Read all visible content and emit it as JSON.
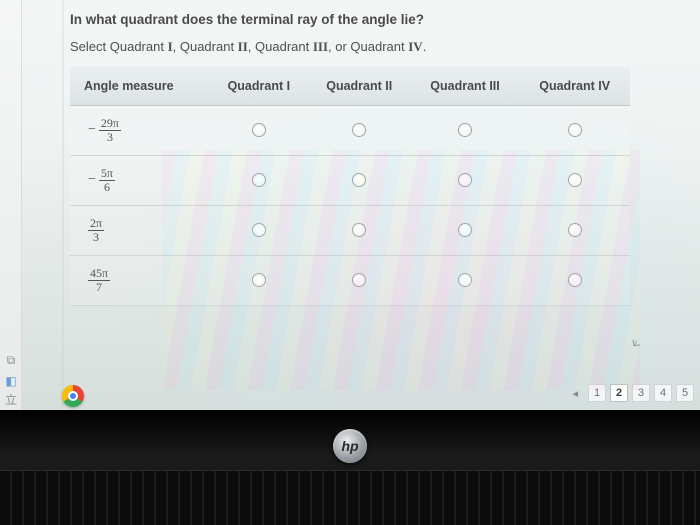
{
  "question": {
    "title": "In what quadrant does the terminal ray of the angle lie?",
    "subtitle_prefix": "Select Quadrant ",
    "subtitle_sep": ", Quadrant ",
    "subtitle_or": ", or Quadrant ",
    "subtitle_end": ".",
    "romans": [
      "I",
      "II",
      "III",
      "IV"
    ]
  },
  "table": {
    "headers": {
      "angle": "Angle measure",
      "cols": [
        "Quadrant I",
        "Quadrant II",
        "Quadrant III",
        "Quadrant IV"
      ]
    },
    "rows": [
      {
        "negative": true,
        "num": "29π",
        "den": "3"
      },
      {
        "negative": true,
        "num": "5π",
        "den": "6"
      },
      {
        "negative": false,
        "num": "2π",
        "den": "3"
      },
      {
        "negative": false,
        "num": "45π",
        "den": "7"
      }
    ],
    "header_bg_top": "#e9eef0",
    "header_bg_bottom": "#dde4e6",
    "border_color": "#cfd6d4"
  },
  "pager": {
    "prev": "◂",
    "pages": [
      "1",
      "2",
      "3",
      "4",
      "5"
    ],
    "active_index": 1
  },
  "hp_label": "hp"
}
